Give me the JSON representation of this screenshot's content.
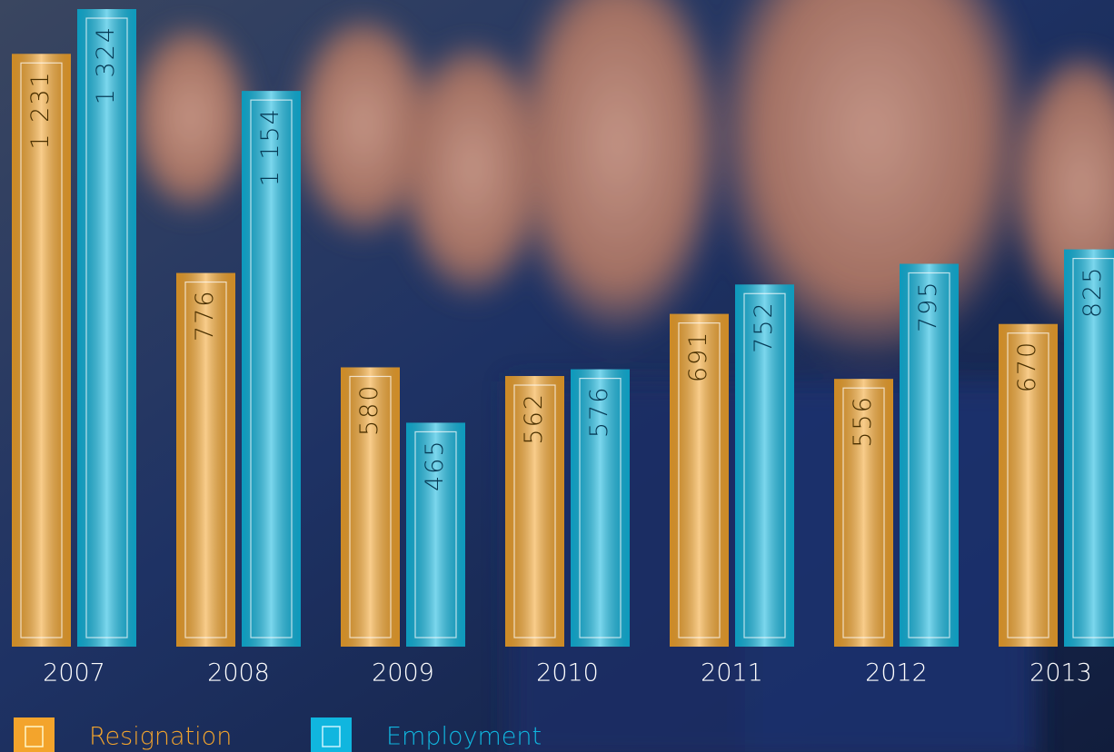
{
  "chart_data": {
    "type": "bar",
    "categories": [
      "2007",
      "2008",
      "2009",
      "2010",
      "2011",
      "2012",
      "2013"
    ],
    "series": [
      {
        "name": "Resignation",
        "color": "#f3a42c",
        "values": [
          1231,
          776,
          580,
          562,
          691,
          556,
          670
        ],
        "value_labels": [
          "1 231",
          "776",
          "580",
          "562",
          "691",
          "556",
          "670"
        ]
      },
      {
        "name": "Employment",
        "color": "#10b6df",
        "values": [
          1324,
          1154,
          465,
          576,
          752,
          795,
          825
        ],
        "value_labels": [
          "1 324",
          "1 154",
          "465",
          "576",
          "752",
          "795",
          "825"
        ]
      }
    ]
  }
}
